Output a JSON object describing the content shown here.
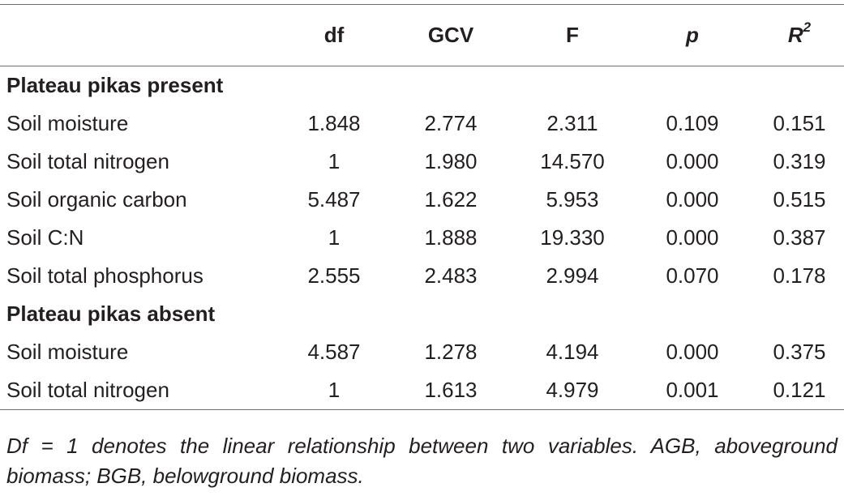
{
  "table": {
    "headers": {
      "df": "df",
      "gcv": "GCV",
      "f": "F",
      "p": "p",
      "r2": "R",
      "r2_sup": "2"
    },
    "sections": [
      {
        "title": "Plateau pikas present",
        "rows": [
          {
            "label": "Soil moisture",
            "df": "1.848",
            "gcv": "2.774",
            "f": "2.311",
            "p": "0.109",
            "r2": "0.151"
          },
          {
            "label": "Soil total nitrogen",
            "df": "1",
            "gcv": "1.980",
            "f": "14.570",
            "p": "0.000",
            "r2": "0.319"
          },
          {
            "label": "Soil organic carbon",
            "df": "5.487",
            "gcv": "1.622",
            "f": "5.953",
            "p": "0.000",
            "r2": "0.515"
          },
          {
            "label": "Soil C:N",
            "df": "1",
            "gcv": "1.888",
            "f": "19.330",
            "p": "0.000",
            "r2": "0.387"
          },
          {
            "label": "Soil total phosphorus",
            "df": "2.555",
            "gcv": "2.483",
            "f": "2.994",
            "p": "0.070",
            "r2": "0.178"
          }
        ]
      },
      {
        "title": "Plateau pikas absent",
        "rows": [
          {
            "label": "Soil moisture",
            "df": "4.587",
            "gcv": "1.278",
            "f": "4.194",
            "p": "0.000",
            "r2": "0.375"
          },
          {
            "label": "Soil total nitrogen",
            "df": "1",
            "gcv": "1.613",
            "f": "4.979",
            "p": "0.001",
            "r2": "0.121"
          }
        ]
      }
    ]
  },
  "footnote": "Df = 1 denotes the linear relationship between two variables. AGB, aboveground biomass; BGB, belowground biomass."
}
